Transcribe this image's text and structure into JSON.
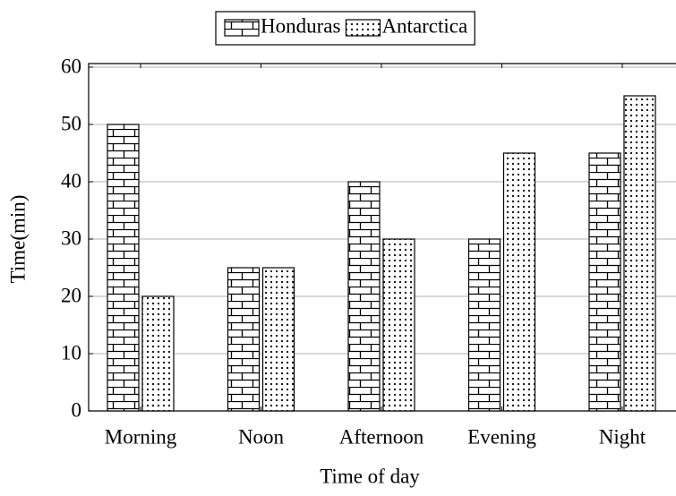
{
  "chart_data": {
    "type": "bar",
    "categories": [
      "Morning",
      "Noon",
      "Afternoon",
      "Evening",
      "Night"
    ],
    "series": [
      {
        "name": "Honduras",
        "color": "#000000",
        "pattern": "bricks",
        "values": [
          50,
          25,
          40,
          30,
          45
        ]
      },
      {
        "name": "Antarctica",
        "color": "#000000",
        "pattern": "dots",
        "values": [
          20,
          25,
          30,
          45,
          55
        ]
      }
    ],
    "x_label": "Time of day",
    "y_label": "Time(min)",
    "ylim": [
      0,
      60
    ],
    "yticks": [
      0,
      10,
      20,
      30,
      40,
      50,
      60
    ],
    "grid": true,
    "legend": "top"
  }
}
